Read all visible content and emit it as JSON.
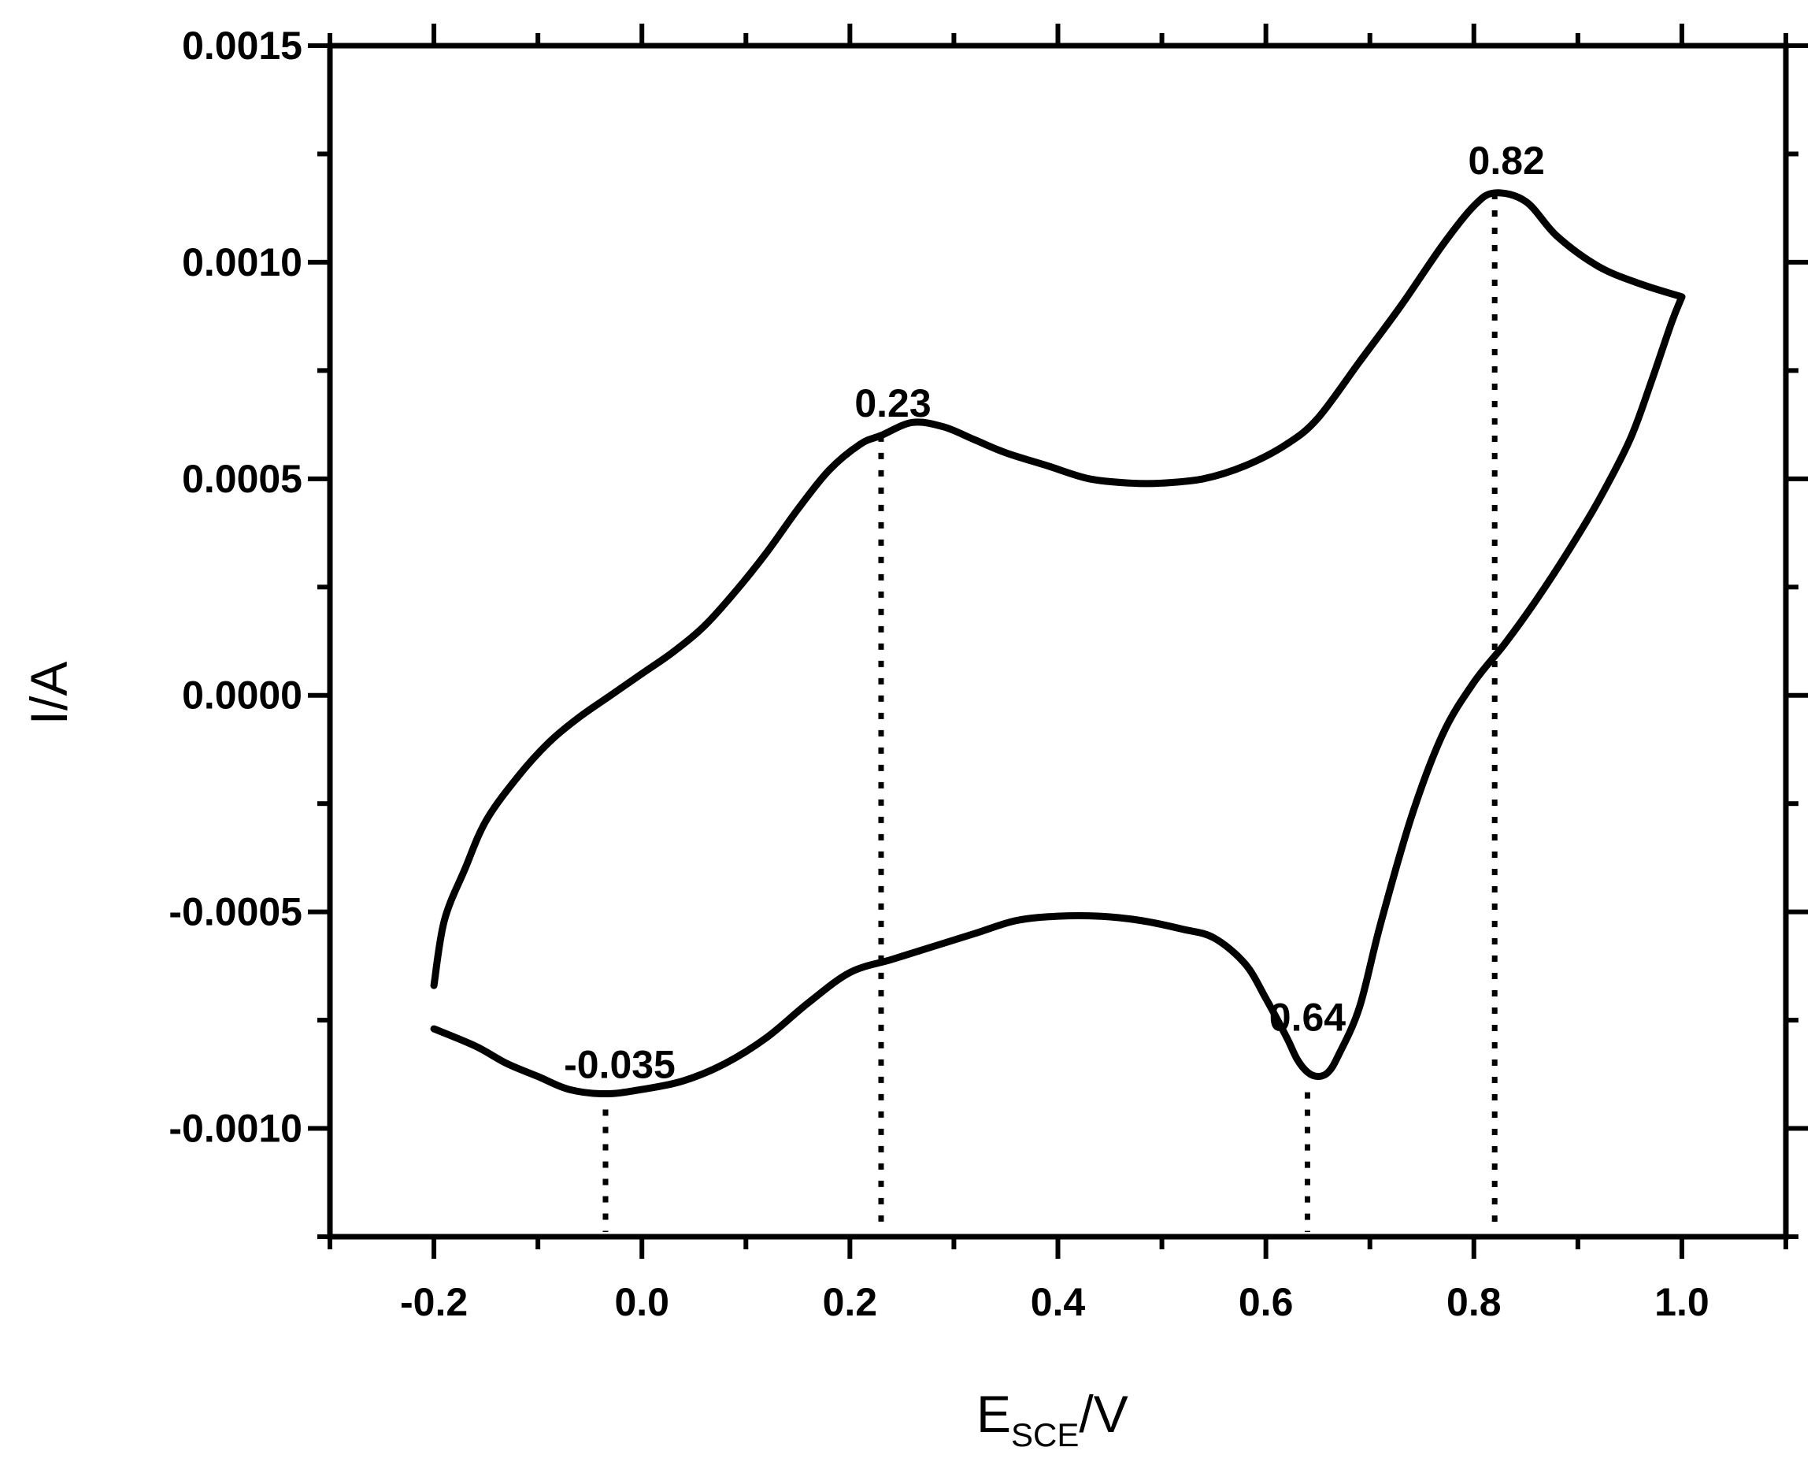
{
  "chart_data": {
    "type": "line",
    "title": "",
    "xlabel_main": "E",
    "xlabel_sub": "SCE",
    "xlabel_suffix": "/V",
    "ylabel": "I/A",
    "xlim": [
      -0.3,
      1.1
    ],
    "ylim": [
      -0.00125,
      0.0015
    ],
    "xticks": [
      -0.2,
      0.0,
      0.2,
      0.4,
      0.6,
      0.8,
      1.0
    ],
    "xtick_labels": [
      "-0.2",
      "0.0",
      "0.2",
      "0.4",
      "0.6",
      "0.8",
      "1.0"
    ],
    "yticks": [
      0.0015,
      0.001,
      0.0005,
      0.0,
      -0.0005,
      -0.001
    ],
    "ytick_labels": [
      "0.0015",
      "0.0010",
      "0.0005",
      "0.0000",
      "-0.0005",
      "-0.0010"
    ],
    "grid": false,
    "series": [
      {
        "x": [
          -0.2,
          -0.19,
          -0.17,
          -0.15,
          -0.12,
          -0.09,
          -0.06,
          -0.03,
          0.0,
          0.03,
          0.06,
          0.09,
          0.12,
          0.15,
          0.18,
          0.21,
          0.23,
          0.26,
          0.29,
          0.32,
          0.35,
          0.39,
          0.43,
          0.47,
          0.5,
          0.54,
          0.58,
          0.62,
          0.65,
          0.69,
          0.73,
          0.77,
          0.8,
          0.82,
          0.85,
          0.88,
          0.92,
          0.96,
          1.0
        ],
        "y": [
          -0.00067,
          -0.00052,
          -0.0004,
          -0.00029,
          -0.00019,
          -0.00011,
          -5e-05,
          0.0,
          5e-05,
          0.0001,
          0.00016,
          0.00024,
          0.00033,
          0.00043,
          0.00052,
          0.00058,
          0.0006,
          0.00063,
          0.00062,
          0.00059,
          0.00056,
          0.00053,
          0.0005,
          0.00049,
          0.00049,
          0.0005,
          0.00053,
          0.00058,
          0.00064,
          0.00077,
          0.0009,
          0.00104,
          0.00113,
          0.00116,
          0.00114,
          0.00106,
          0.00099,
          0.00095,
          0.00092
        ]
      },
      {
        "x": [
          1.0,
          0.99,
          0.97,
          0.95,
          0.92,
          0.89,
          0.86,
          0.83,
          0.8,
          0.77,
          0.74,
          0.71,
          0.69,
          0.67,
          0.66,
          0.65,
          0.64,
          0.63,
          0.62,
          0.6,
          0.58,
          0.55,
          0.52,
          0.48,
          0.44,
          0.4,
          0.36,
          0.32,
          0.28,
          0.24,
          0.2,
          0.16,
          0.12,
          0.08,
          0.04,
          0.0,
          -0.035,
          -0.07,
          -0.1,
          -0.13,
          -0.16,
          -0.2
        ],
        "y": [
          0.00092,
          0.00086,
          0.00072,
          0.00059,
          0.00045,
          0.00033,
          0.00022,
          0.00012,
          3e-05,
          -9e-05,
          -0.00028,
          -0.00053,
          -0.00072,
          -0.00083,
          -0.00087,
          -0.00088,
          -0.00087,
          -0.00084,
          -0.00079,
          -0.0007,
          -0.00062,
          -0.00056,
          -0.00054,
          -0.00052,
          -0.00051,
          -0.00051,
          -0.00052,
          -0.00055,
          -0.00058,
          -0.00061,
          -0.00064,
          -0.00071,
          -0.00079,
          -0.00085,
          -0.00089,
          -0.00091,
          -0.00092,
          -0.00091,
          -0.00088,
          -0.00085,
          -0.00081,
          -0.00077
        ]
      }
    ],
    "annotations": [
      {
        "text": "0.23",
        "x": 0.23,
        "y": 0.0006,
        "y_end": -0.00125
      },
      {
        "text": "0.82",
        "x": 0.82,
        "y": 0.00116,
        "y_end": -0.00125
      },
      {
        "text": "0.64",
        "x": 0.64,
        "y": -0.00088,
        "y_end": -0.00125
      },
      {
        "text": "-0.035",
        "x": -0.035,
        "y": -0.00092,
        "y_end": -0.00125
      }
    ]
  }
}
